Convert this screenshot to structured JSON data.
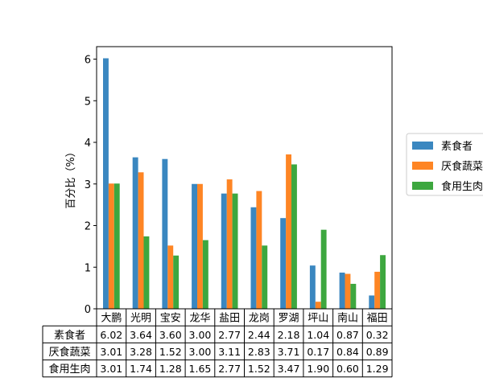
{
  "chart_data": {
    "type": "bar",
    "title": "",
    "xlabel": "",
    "ylabel": "百分比（%）",
    "ylim": [
      0,
      6.3
    ],
    "yticks": [
      0,
      1,
      2,
      3,
      4,
      5,
      6
    ],
    "grid": false,
    "legend_position": "right",
    "categories": [
      "大鹏",
      "光明",
      "宝安",
      "龙华",
      "盐田",
      "龙岗",
      "罗湖",
      "坪山",
      "南山",
      "福田"
    ],
    "series": [
      {
        "name": "素食者",
        "color": "#3a87c0",
        "values": [
          6.02,
          3.64,
          3.6,
          3.0,
          2.77,
          2.44,
          2.18,
          1.04,
          0.87,
          0.32
        ]
      },
      {
        "name": "厌食蔬菜",
        "color": "#fe8524",
        "values": [
          3.01,
          3.28,
          1.52,
          3.0,
          3.11,
          2.83,
          3.71,
          0.17,
          0.84,
          0.89
        ]
      },
      {
        "name": "食用生肉",
        "color": "#3da73f",
        "values": [
          3.01,
          1.74,
          1.28,
          1.65,
          2.77,
          1.52,
          3.47,
          1.9,
          0.6,
          1.29
        ]
      }
    ],
    "table": {
      "row_labels": [
        "素食者",
        "厌食蔬菜",
        "食用生肉"
      ],
      "cells": [
        [
          "6.02",
          "3.64",
          "3.60",
          "3.00",
          "2.77",
          "2.44",
          "2.18",
          "1.04",
          "0.87",
          "0.32"
        ],
        [
          "3.01",
          "3.28",
          "1.52",
          "3.00",
          "3.11",
          "2.83",
          "3.71",
          "0.17",
          "0.84",
          "0.89"
        ],
        [
          "3.01",
          "1.74",
          "1.28",
          "1.65",
          "2.77",
          "1.52",
          "3.47",
          "1.90",
          "0.60",
          "1.29"
        ]
      ]
    }
  }
}
